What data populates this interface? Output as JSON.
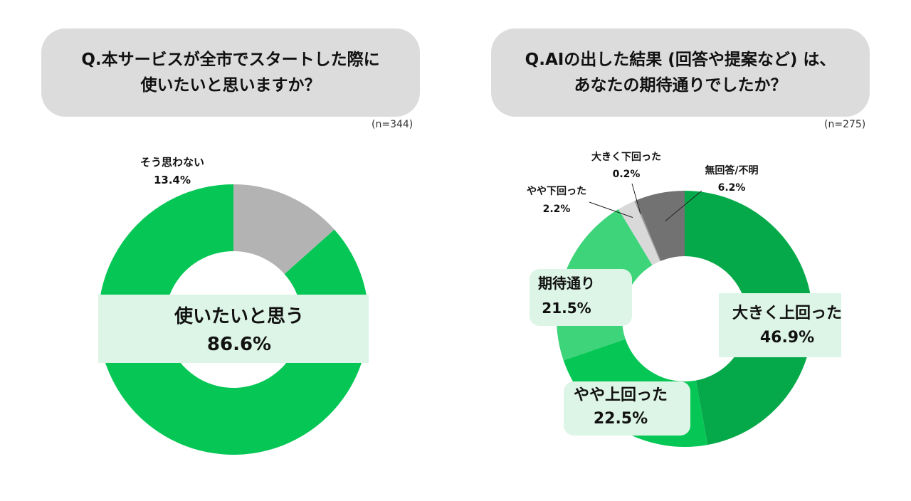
{
  "questions": [
    {
      "line1": "Q.本サービスが全市でスタートした際に",
      "line2": "使いたいと思いますか？",
      "n": "(n=344)"
    },
    {
      "line1": "Q.AIの出した結果 (回答や提案など) は、",
      "line2": "あなたの期待通りでしたか？",
      "n": "(n=275)"
    }
  ],
  "chart_data": [
    {
      "type": "pie",
      "title": "Q.本サービスが全市でスタートした際に使いたいと思いますか？",
      "n": "(n=344)",
      "slices": [
        {
          "label": "使いたいと思う",
          "value": 86.6,
          "value_label": "86.6%",
          "color": "#06c755"
        },
        {
          "label": "そう思わない",
          "value": 13.4,
          "value_label": "13.4%",
          "color": "#b3b3b3"
        }
      ]
    },
    {
      "type": "pie",
      "title": "Q.AIの出した結果 (回答や提案など) は、あなたの期待通りでしたか？",
      "n": "(n=275)",
      "slices": [
        {
          "label": "大きく上回った",
          "value": 46.9,
          "value_label": "46.9%",
          "color": "#06a94a"
        },
        {
          "label": "やや上回った",
          "value": 22.5,
          "value_label": "22.5%",
          "color": "#06c755"
        },
        {
          "label": "期待通り",
          "value": 21.5,
          "value_label": "21.5%",
          "color": "#3dd47a"
        },
        {
          "label": "やや下回った",
          "value": 2.2,
          "value_label": "2.2%",
          "color": "#d9d9d9"
        },
        {
          "label": "大きく下回った",
          "value": 0.2,
          "value_label": "0.2%",
          "color": "#9e9e9e"
        },
        {
          "label": "無回答/不明",
          "value": 6.2,
          "value_label": "6.2%",
          "color": "#727272"
        }
      ]
    }
  ]
}
